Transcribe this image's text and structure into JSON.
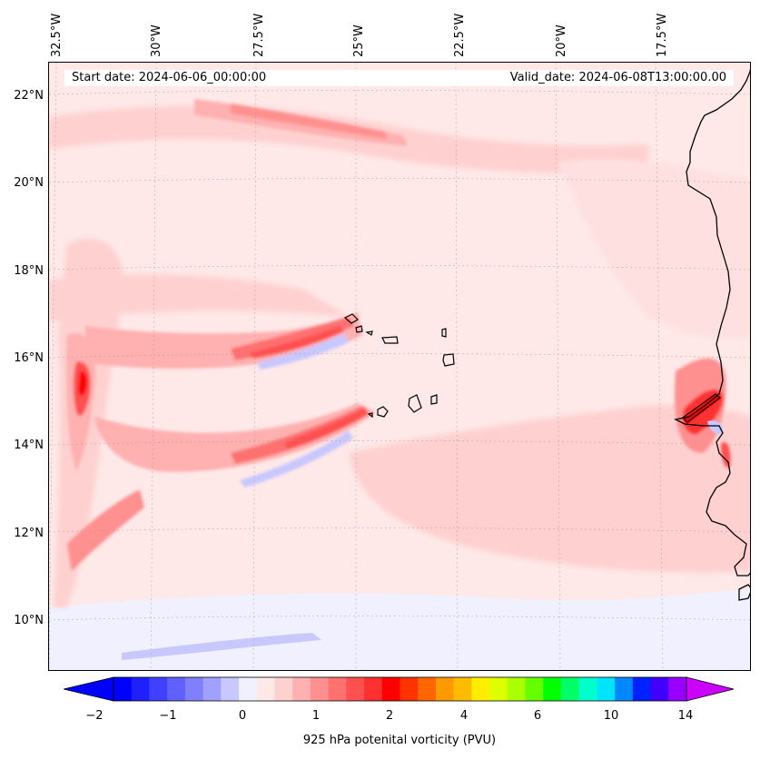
{
  "header": {
    "start_date": "Start date: 2024-06-06_00:00:00",
    "valid_date": "Valid_date: 2024-06-08T13:00:00.00"
  },
  "map": {
    "type": "filled-contour map",
    "variable": "potential vorticity",
    "level": "925 hPa",
    "region": "Eastern tropical Atlantic, Cape Verde Islands and West African coast",
    "lon_labels": [
      "32.5°W",
      "30°W",
      "27.5°W",
      "25°W",
      "22.5°W",
      "20°W",
      "17.5°W"
    ],
    "lat_labels": [
      "22°N",
      "20°N",
      "18°N",
      "16°N",
      "14°N",
      "12°N",
      "10°N"
    ],
    "gridlines": true
  },
  "colorbar": {
    "label": "925 hPa potenital vorticity (PVU)",
    "tick_labels": [
      "−2",
      "−1",
      "0",
      "1",
      "2",
      "4",
      "6",
      "10",
      "14"
    ],
    "colors": [
      "#0000ff",
      "#2020ff",
      "#4040ff",
      "#6060ff",
      "#8080ff",
      "#a0a0ff",
      "#c8c8ff",
      "#f0f0ff",
      "#ffe8e8",
      "#ffd0d0",
      "#ffb0b0",
      "#ff9090",
      "#ff7070",
      "#ff5050",
      "#ff3030",
      "#ff0000",
      "#ff3300",
      "#ff6600",
      "#ff9900",
      "#ffbb00",
      "#ffee00",
      "#ddff00",
      "#aaff00",
      "#66ff00",
      "#00ff00",
      "#00ff66",
      "#00ffcc",
      "#00e5ff",
      "#0088ff",
      "#0022ff",
      "#4400ff",
      "#9900ff"
    ],
    "extend_low_color": "#0000ff",
    "extend_high_color": "#cc00ff"
  }
}
